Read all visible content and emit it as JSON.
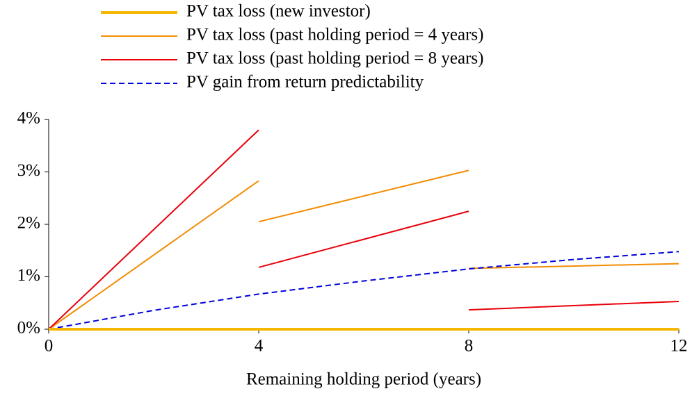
{
  "chart_data": {
    "type": "line",
    "xlabel": "Remaining holding period (years)",
    "xlim": [
      0,
      12
    ],
    "xticks": [
      0,
      4,
      8,
      12
    ],
    "ylim": [
      0,
      4
    ],
    "yticks": [
      {
        "value": 0,
        "label": "0%"
      },
      {
        "value": 1,
        "label": "1%"
      },
      {
        "value": 2,
        "label": "2%"
      },
      {
        "value": 3,
        "label": "3%"
      },
      {
        "value": 4,
        "label": "4%"
      }
    ],
    "grid": false,
    "legend": "top",
    "series": [
      {
        "name": "PV tax loss (new investor)",
        "color": "#f5b800",
        "linewidth": 4,
        "linestyle": "solid",
        "x": [
          0,
          12
        ],
        "values": [
          0,
          0
        ]
      },
      {
        "name": "PV tax loss (past holding period = 4 years)",
        "color": "#f28c00",
        "linewidth": 2,
        "linestyle": "solid",
        "x": [
          0,
          4,
          null,
          4,
          8,
          null,
          8,
          12
        ],
        "values": [
          0,
          2.83,
          null,
          2.05,
          3.03,
          null,
          1.16,
          1.25
        ]
      },
      {
        "name": "PV tax loss (past holding period = 8 years)",
        "color": "#e8000b",
        "linewidth": 2,
        "linestyle": "solid",
        "x": [
          0,
          4,
          null,
          4,
          8,
          null,
          8,
          12
        ],
        "values": [
          0,
          3.8,
          null,
          1.18,
          2.25,
          null,
          0.37,
          0.53
        ]
      },
      {
        "name": "PV gain from return predictability",
        "color": "#0000dd",
        "linewidth": 2,
        "linestyle": "dashed",
        "x": [
          0,
          2,
          4,
          6,
          8,
          10,
          12
        ],
        "values": [
          0,
          0.36,
          0.67,
          0.92,
          1.15,
          1.33,
          1.48
        ]
      }
    ]
  }
}
